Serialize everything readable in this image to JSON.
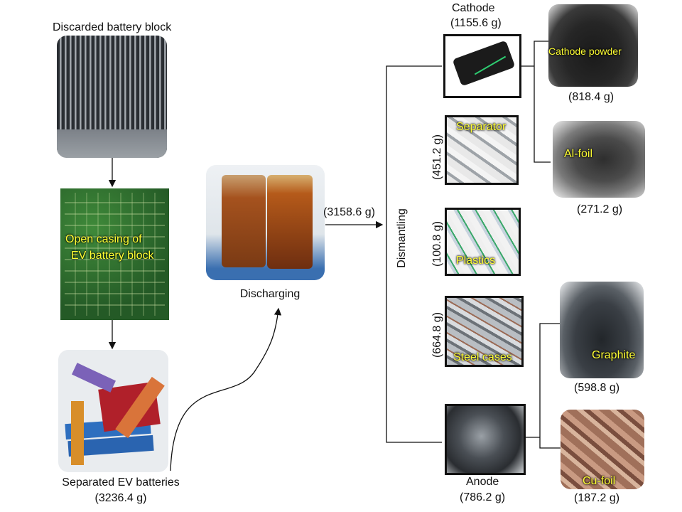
{
  "stages": {
    "block": {
      "title": "Discarded battery block"
    },
    "open_casing": {
      "overlay_line1": "Open casing of",
      "overlay_line2": "EV battery block"
    },
    "separated": {
      "title": "Separated EV batteries",
      "weight": "(3236.4 g)"
    },
    "discharging": {
      "title": "Discharging",
      "weight": "(3158.6 g)"
    },
    "dismantling": {
      "label": "Dismantling"
    }
  },
  "components": {
    "cathode": {
      "title": "Cathode",
      "weight": "(1155.6 g)"
    },
    "separator": {
      "overlay": "Separator",
      "weight": "(451.2 g)"
    },
    "plastics": {
      "overlay": "Plastics",
      "weight": "(100.8 g)"
    },
    "steel": {
      "overlay": "Steel cases",
      "weight": "(664.8 g)"
    },
    "anode": {
      "title": "Anode",
      "weight": "(786.2 g)"
    }
  },
  "products": {
    "cathode_powder": {
      "overlay": "Cathode  powder",
      "weight": "(818.4 g)"
    },
    "al_foil": {
      "overlay": "Al-foil",
      "weight": "(271.2 g)"
    },
    "graphite": {
      "overlay": "Graphite",
      "weight": "(598.8 g)"
    },
    "cu_foil": {
      "overlay": "Cu-foil",
      "weight": "(187.2 g)"
    }
  },
  "colors": {
    "overlay_text": "#ffff33",
    "line": "#111111"
  }
}
